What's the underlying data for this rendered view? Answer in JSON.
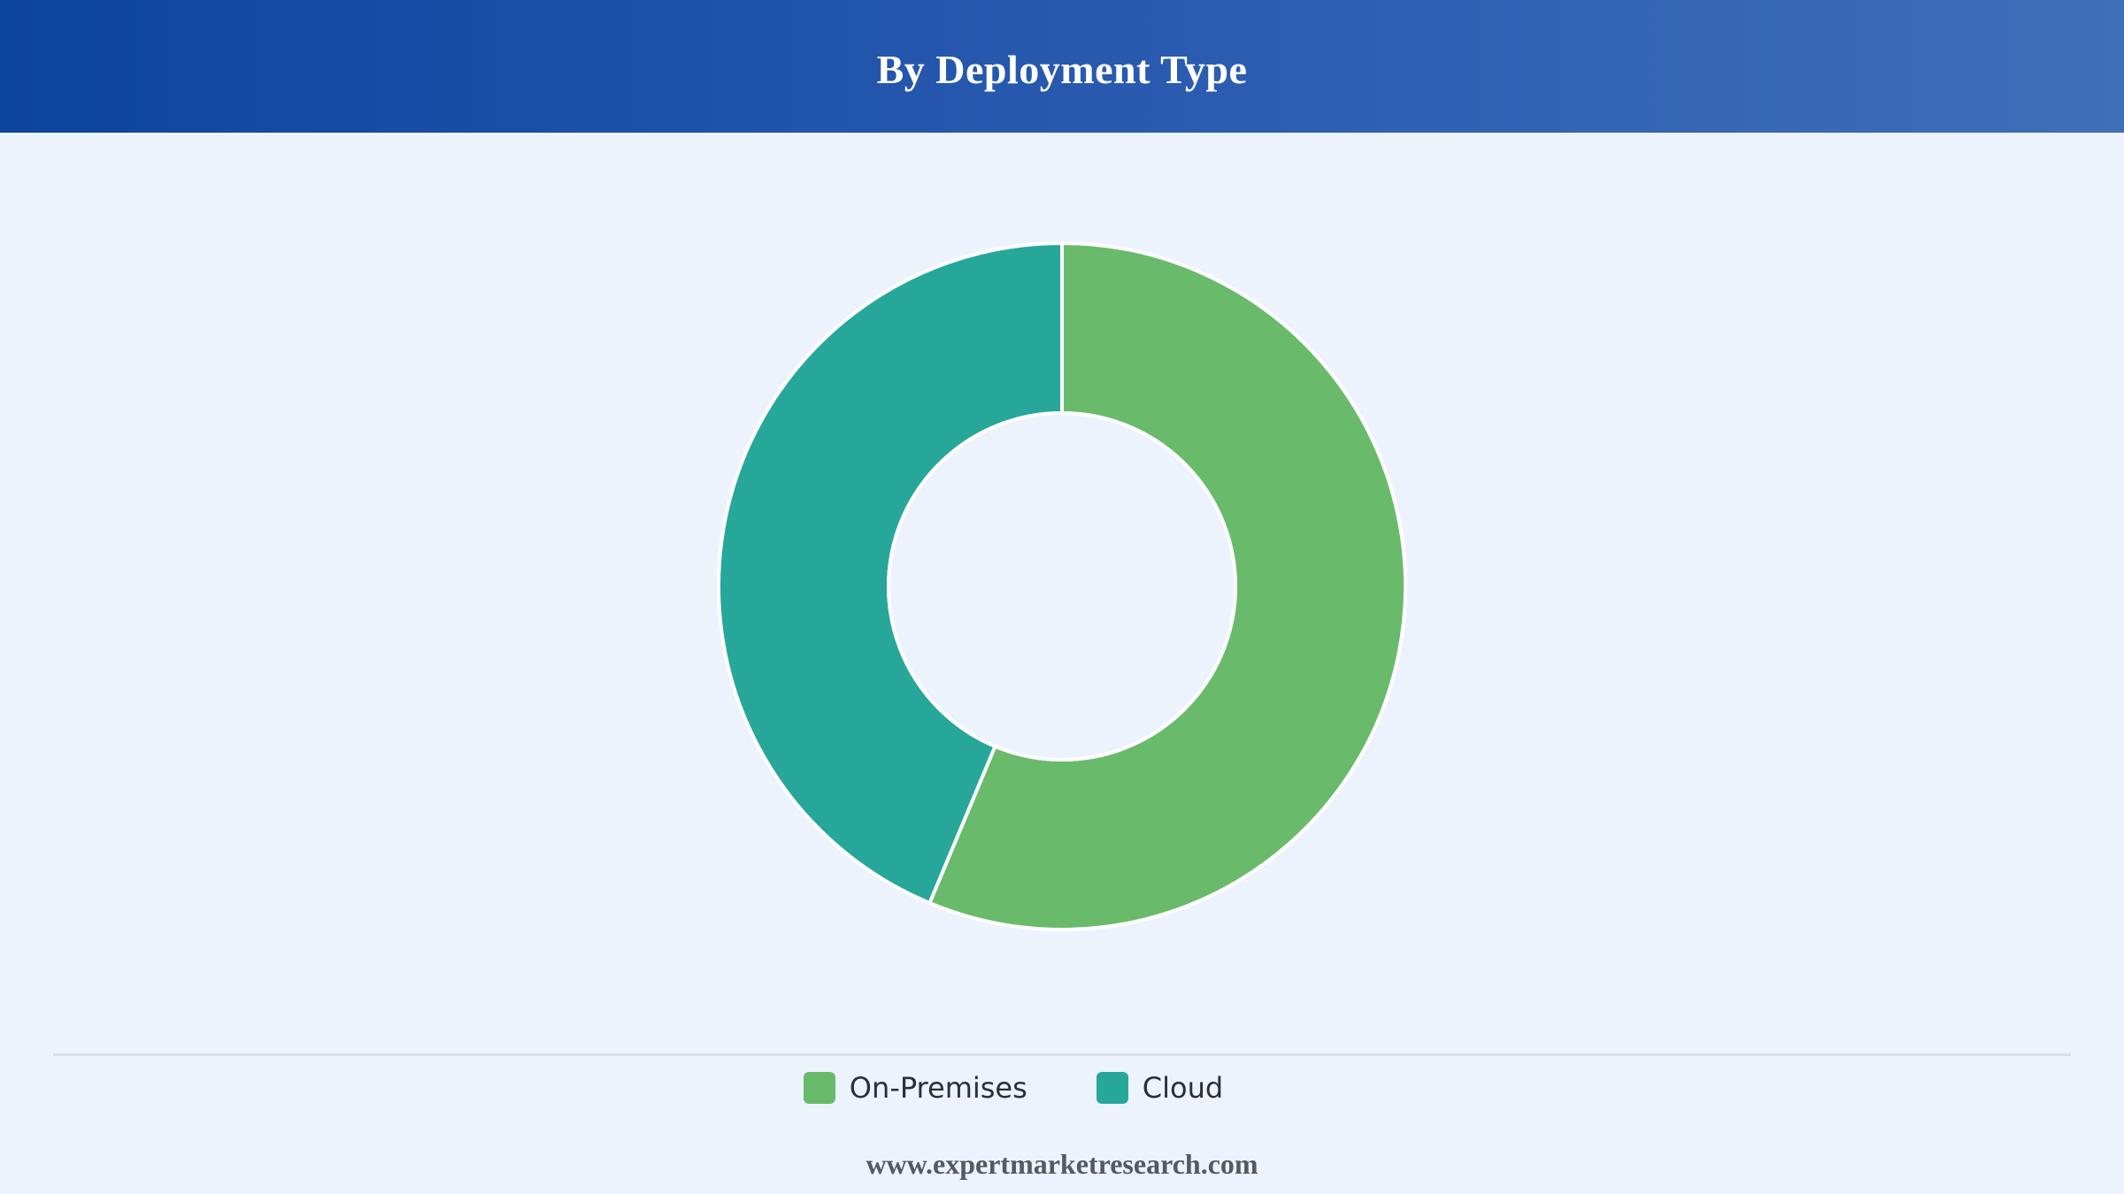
{
  "header": {
    "title": "By Deployment Type"
  },
  "chart_data": {
    "type": "pie",
    "variant": "donut",
    "title": "By Deployment Type",
    "categories": [
      "On-Premises",
      "Cloud"
    ],
    "values": [
      56.3,
      43.7
    ],
    "unit": "%",
    "colors": [
      "#69bb6b",
      "#26a79a"
    ],
    "slice_border_color": "#ffffff",
    "start_angle_deg": 0,
    "direction": "clockwise",
    "legend_position": "bottom-center",
    "data_labels": false
  },
  "legend": {
    "items": [
      {
        "label": "On-Premises",
        "color": "#69bb6b"
      },
      {
        "label": "Cloud",
        "color": "#26a79a"
      }
    ]
  },
  "footer": {
    "source": "www.expertmarketresearch.com"
  }
}
